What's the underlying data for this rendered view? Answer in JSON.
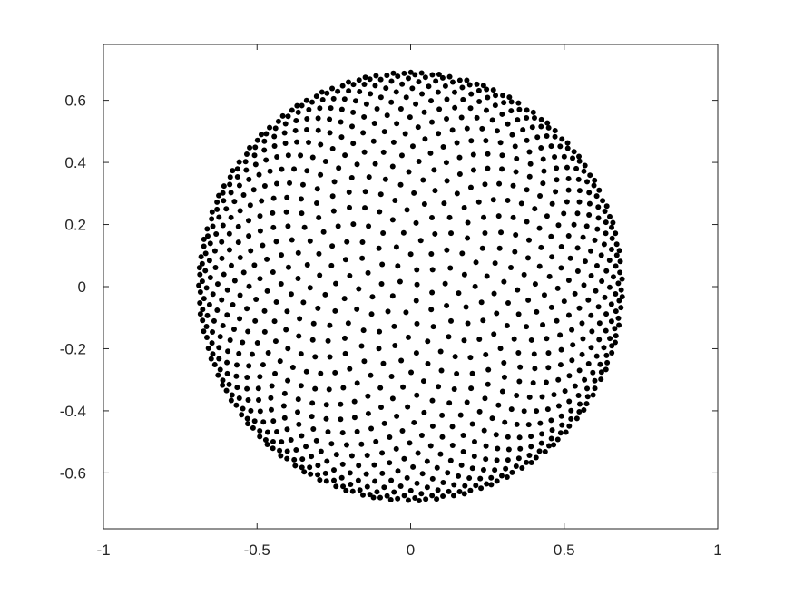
{
  "chart_data": {
    "type": "scatter",
    "title": "",
    "xlabel": "",
    "ylabel": "",
    "xlim": [
      -1,
      1
    ],
    "ylim": [
      -0.78,
      0.78
    ],
    "xticks": [
      -1,
      -0.5,
      0,
      0.5,
      1
    ],
    "xtick_labels": [
      "-1",
      "-0.5",
      "0",
      "0.5",
      "1"
    ],
    "yticks": [
      -0.6,
      -0.4,
      -0.2,
      0,
      0.2,
      0.4,
      0.6
    ],
    "ytick_labels": [
      "-0.6",
      "-0.4",
      "-0.2",
      "0",
      "0.2",
      "0.4",
      "0.6"
    ],
    "grid": false,
    "marker_color": "#000000",
    "axis_color": "#262626",
    "series": [
      {
        "description_of_distribution": "about 1000 points forming a disk of radius 0.69 centred near (0,0), sparse in the middle and densely packed toward the boundary (points of a sphere projected onto a plane)",
        "center": [
          0,
          0
        ],
        "radius": 0.69,
        "point_count": 1000
      }
    ]
  }
}
